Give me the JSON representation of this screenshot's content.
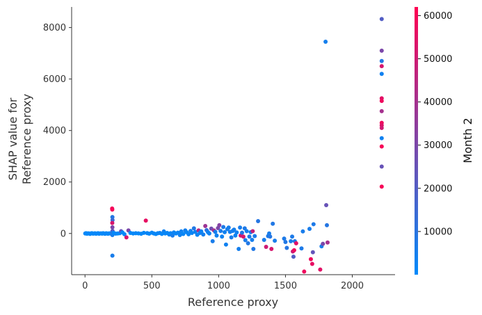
{
  "chart_data": {
    "type": "scatter",
    "title": "",
    "xlabel": "Reference proxy",
    "ylabel_lines": [
      "SHAP value for",
      "Reference proxy"
    ],
    "xlim": [
      -100,
      2320
    ],
    "ylim": [
      -1600,
      8800
    ],
    "x_ticks": [
      0,
      500,
      1000,
      1500,
      2000
    ],
    "y_ticks": [
      0,
      2000,
      4000,
      6000,
      8000
    ],
    "grid": false,
    "colorbar": {
      "label": "Month 2",
      "range": [
        0,
        62000
      ],
      "ticks": [
        10000,
        20000,
        30000,
        40000,
        50000,
        60000
      ],
      "color_low": "#008afb",
      "color_high": "#ff0052"
    },
    "points": [
      [
        2,
        0,
        600
      ],
      [
        8,
        10,
        800
      ],
      [
        15,
        -10,
        500
      ],
      [
        22,
        5,
        900
      ],
      [
        30,
        0,
        700
      ],
      [
        38,
        -15,
        1200
      ],
      [
        45,
        5,
        800
      ],
      [
        52,
        10,
        600
      ],
      [
        60,
        -5,
        900
      ],
      [
        68,
        0,
        1000
      ],
      [
        75,
        8,
        700
      ],
      [
        82,
        -8,
        800
      ],
      [
        90,
        0,
        1100
      ],
      [
        98,
        12,
        600
      ],
      [
        105,
        -10,
        900
      ],
      [
        112,
        0,
        700
      ],
      [
        120,
        5,
        1500
      ],
      [
        128,
        -5,
        800
      ],
      [
        135,
        10,
        900
      ],
      [
        142,
        0,
        700
      ],
      [
        150,
        -12,
        1200
      ],
      [
        158,
        6,
        800
      ],
      [
        165,
        0,
        1000
      ],
      [
        172,
        -8,
        900
      ],
      [
        180,
        4,
        700
      ],
      [
        188,
        0,
        1200
      ],
      [
        195,
        10,
        800
      ],
      [
        203,
        970,
        58000
      ],
      [
        204,
        930,
        60000
      ],
      [
        205,
        640,
        9000
      ],
      [
        206,
        520,
        14000
      ],
      [
        204,
        410,
        52000
      ],
      [
        205,
        240,
        30000
      ],
      [
        206,
        100,
        25000
      ],
      [
        205,
        40,
        9000
      ],
      [
        205,
        -20,
        12000
      ],
      [
        205,
        -60,
        6000
      ],
      [
        205,
        -860,
        6000
      ],
      [
        215,
        20,
        800
      ],
      [
        230,
        -5,
        1200
      ],
      [
        245,
        0,
        900
      ],
      [
        260,
        10,
        700
      ],
      [
        270,
        90,
        24000
      ],
      [
        280,
        40,
        1000
      ],
      [
        295,
        -30,
        1200
      ],
      [
        310,
        -150,
        52000
      ],
      [
        325,
        120,
        30000
      ],
      [
        340,
        20,
        1000
      ],
      [
        360,
        0,
        800
      ],
      [
        380,
        10,
        1200
      ],
      [
        400,
        5,
        900
      ],
      [
        420,
        -10,
        1000
      ],
      [
        440,
        25,
        1500
      ],
      [
        455,
        500,
        56000
      ],
      [
        465,
        15,
        2000
      ],
      [
        480,
        -5,
        1200
      ],
      [
        500,
        30,
        1500
      ],
      [
        515,
        0,
        1800
      ],
      [
        530,
        -20,
        1000
      ],
      [
        545,
        10,
        2000
      ],
      [
        560,
        20,
        3000
      ],
      [
        575,
        -15,
        1500
      ],
      [
        590,
        80,
        4000
      ],
      [
        600,
        0,
        1500
      ],
      [
        615,
        20,
        1800
      ],
      [
        630,
        -40,
        2500
      ],
      [
        640,
        10,
        2000
      ],
      [
        655,
        -80,
        6000
      ],
      [
        665,
        40,
        3000
      ],
      [
        680,
        0,
        2200
      ],
      [
        695,
        30,
        2500
      ],
      [
        710,
        -60,
        4000
      ],
      [
        720,
        80,
        3000
      ],
      [
        735,
        -20,
        2000
      ],
      [
        750,
        120,
        5000
      ],
      [
        760,
        50,
        2500
      ],
      [
        775,
        -30,
        3000
      ],
      [
        790,
        100,
        4000
      ],
      [
        800,
        20,
        2500
      ],
      [
        815,
        200,
        8000
      ],
      [
        825,
        60,
        3500
      ],
      [
        840,
        -50,
        3000
      ],
      [
        850,
        120,
        45000
      ],
      [
        860,
        20,
        4000
      ],
      [
        870,
        80,
        3000
      ],
      [
        885,
        -40,
        5000
      ],
      [
        900,
        290,
        38000
      ],
      [
        910,
        130,
        12000
      ],
      [
        920,
        50,
        3000
      ],
      [
        930,
        0,
        4000
      ],
      [
        945,
        190,
        28000
      ],
      [
        955,
        -300,
        6000
      ],
      [
        965,
        120,
        40000
      ],
      [
        975,
        60,
        5000
      ],
      [
        985,
        -80,
        4000
      ],
      [
        995,
        210,
        30000
      ],
      [
        1005,
        320,
        32000
      ],
      [
        1015,
        100,
        6000
      ],
      [
        1025,
        -120,
        3500
      ],
      [
        1035,
        250,
        7000
      ],
      [
        1045,
        50,
        4000
      ],
      [
        1055,
        -430,
        4000
      ],
      [
        1065,
        170,
        5000
      ],
      [
        1075,
        230,
        5500
      ],
      [
        1085,
        60,
        5000
      ],
      [
        1095,
        -150,
        6000
      ],
      [
        1105,
        100,
        4500
      ],
      [
        1115,
        150,
        5000
      ],
      [
        1125,
        -80,
        3000
      ],
      [
        1135,
        40,
        4000
      ],
      [
        1150,
        -600,
        5000
      ],
      [
        1160,
        230,
        6000
      ],
      [
        1165,
        -80,
        50000
      ],
      [
        1175,
        30,
        8000
      ],
      [
        1185,
        -120,
        52000
      ],
      [
        1195,
        200,
        7000
      ],
      [
        1200,
        -260,
        6000
      ],
      [
        1210,
        90,
        5000
      ],
      [
        1220,
        -380,
        8000
      ],
      [
        1230,
        -120,
        7000
      ],
      [
        1240,
        50,
        6000
      ],
      [
        1250,
        -250,
        5000
      ],
      [
        1255,
        90,
        48000
      ],
      [
        1260,
        -600,
        8000
      ],
      [
        1270,
        -100,
        6000
      ],
      [
        1295,
        480,
        9000
      ],
      [
        1340,
        -250,
        6000
      ],
      [
        1355,
        -520,
        50000
      ],
      [
        1370,
        -100,
        7000
      ],
      [
        1378,
        0,
        6000
      ],
      [
        1385,
        -120,
        9000
      ],
      [
        1395,
        -600,
        52000
      ],
      [
        1405,
        380,
        8000
      ],
      [
        1420,
        -280,
        6000
      ],
      [
        1490,
        -200,
        7000
      ],
      [
        1500,
        -330,
        8000
      ],
      [
        1510,
        -560,
        9000
      ],
      [
        1540,
        -300,
        6000
      ],
      [
        1550,
        -120,
        7000
      ],
      [
        1555,
        -700,
        48000
      ],
      [
        1560,
        -900,
        20000
      ],
      [
        1565,
        -650,
        58000
      ],
      [
        1570,
        -300,
        8000
      ],
      [
        1580,
        -380,
        55000
      ],
      [
        1620,
        -580,
        7000
      ],
      [
        1630,
        80,
        6000
      ],
      [
        1640,
        -1480,
        58000
      ],
      [
        1680,
        180,
        6000
      ],
      [
        1690,
        -1000,
        58000
      ],
      [
        1700,
        -1180,
        56000
      ],
      [
        1705,
        -730,
        24000
      ],
      [
        1710,
        360,
        7000
      ],
      [
        1760,
        -1400,
        55000
      ],
      [
        1770,
        -500,
        6000
      ],
      [
        1780,
        -400,
        30000
      ],
      [
        1800,
        7450,
        5000
      ],
      [
        1805,
        1100,
        25000
      ],
      [
        1810,
        320,
        9000
      ],
      [
        1815,
        -350,
        40000
      ],
      [
        2220,
        8330,
        20000
      ],
      [
        2220,
        7100,
        30000
      ],
      [
        2220,
        6700,
        8000
      ],
      [
        2220,
        6500,
        52000
      ],
      [
        2220,
        6200,
        4000
      ],
      [
        2220,
        5250,
        55000
      ],
      [
        2220,
        5150,
        58000
      ],
      [
        2220,
        4750,
        40000
      ],
      [
        2220,
        4300,
        58000
      ],
      [
        2220,
        4200,
        54000
      ],
      [
        2220,
        4100,
        50000
      ],
      [
        2220,
        3700,
        4000
      ],
      [
        2220,
        3380,
        60000
      ],
      [
        2220,
        2600,
        25000
      ],
      [
        2220,
        1820,
        60000
      ]
    ]
  }
}
